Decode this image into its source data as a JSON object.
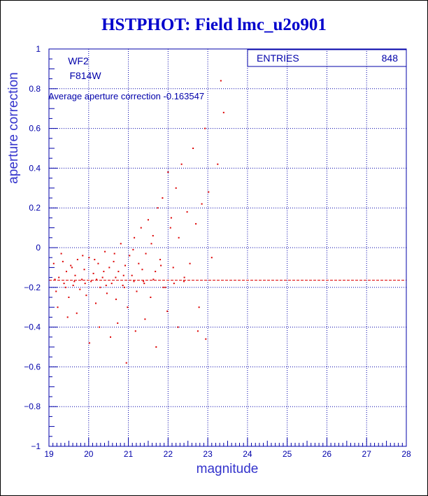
{
  "chart_data": {
    "type": "scatter",
    "title": "HSTPHOT: Field lmc_u2o901",
    "xlabel": "magnitude",
    "ylabel": "aperture correction",
    "xlim": [
      19,
      28
    ],
    "ylim": [
      -1,
      1
    ],
    "x_ticks": [
      "19",
      "20",
      "21",
      "22",
      "23",
      "24",
      "25",
      "26",
      "27",
      "28"
    ],
    "y_ticks": [
      "-1",
      "-0.8",
      "-0.6",
      "-0.4",
      "-0.2",
      "0",
      "0.2",
      "0.4",
      "0.6",
      "0.8",
      "1"
    ],
    "grid": true,
    "annotations": {
      "chip": "WF2",
      "filter": "F814W",
      "average_text": "Average aperture correction -0.163547",
      "average_value": -0.163547
    },
    "stats_box": {
      "label": "ENTRIES",
      "value": "848"
    },
    "marker_color": "#dd0000",
    "axis_color": "#0000aa",
    "points": [
      [
        19.12,
        -0.08
      ],
      [
        19.18,
        -0.22
      ],
      [
        19.25,
        -0.15
      ],
      [
        19.31,
        -0.03
      ],
      [
        19.38,
        -0.18
      ],
      [
        19.44,
        -0.12
      ],
      [
        19.5,
        -0.25
      ],
      [
        19.55,
        -0.09
      ],
      [
        19.61,
        -0.19
      ],
      [
        19.66,
        -0.14
      ],
      [
        19.72,
        -0.06
      ],
      [
        19.78,
        -0.21
      ],
      [
        19.83,
        -0.16
      ],
      [
        19.89,
        -0.11
      ],
      [
        19.94,
        -0.24
      ],
      [
        20.01,
        -0.05
      ],
      [
        20.06,
        -0.17
      ],
      [
        20.12,
        -0.13
      ],
      [
        20.18,
        -0.28
      ],
      [
        20.24,
        -0.08
      ],
      [
        20.29,
        -0.2
      ],
      [
        20.35,
        -0.15
      ],
      [
        20.41,
        -0.02
      ],
      [
        20.46,
        -0.23
      ],
      [
        20.52,
        -0.1
      ],
      [
        20.58,
        -0.18
      ],
      [
        20.63,
        -0.07
      ],
      [
        20.69,
        -0.26
      ],
      [
        20.75,
        -0.12
      ],
      [
        20.81,
        0.02
      ],
      [
        20.86,
        -0.19
      ],
      [
        20.92,
        -0.09
      ],
      [
        20.98,
        -0.3
      ],
      [
        21.03,
        -0.04
      ],
      [
        21.09,
        -0.14
      ],
      [
        21.15,
        0.05
      ],
      [
        21.21,
        -0.22
      ],
      [
        21.26,
        -0.08
      ],
      [
        21.32,
        0.1
      ],
      [
        21.38,
        -0.17
      ],
      [
        21.44,
        -0.03
      ],
      [
        21.5,
        0.14
      ],
      [
        21.56,
        -0.25
      ],
      [
        21.62,
        0.06
      ],
      [
        21.68,
        -0.12
      ],
      [
        21.74,
        0.2
      ],
      [
        21.8,
        -0.06
      ],
      [
        21.86,
        0.25
      ],
      [
        21.93,
        -0.2
      ],
      [
        22.0,
        0.38
      ],
      [
        22.06,
        0.1
      ],
      [
        22.13,
        -0.1
      ],
      [
        22.2,
        0.3
      ],
      [
        22.27,
        0.05
      ],
      [
        22.34,
        0.42
      ],
      [
        22.41,
        -0.15
      ],
      [
        22.48,
        0.18
      ],
      [
        22.55,
        -0.08
      ],
      [
        22.63,
        0.5
      ],
      [
        22.7,
        0.12
      ],
      [
        22.78,
        -0.3
      ],
      [
        22.85,
        0.22
      ],
      [
        22.93,
        0.6
      ],
      [
        23.02,
        0.28
      ],
      [
        23.1,
        -0.05
      ],
      [
        23.25,
        0.42
      ],
      [
        23.33,
        0.84
      ],
      [
        23.4,
        0.68
      ],
      [
        19.22,
        -0.3
      ],
      [
        19.47,
        -0.35
      ],
      [
        19.7,
        -0.33
      ],
      [
        20.02,
        -0.48
      ],
      [
        20.27,
        -0.4
      ],
      [
        20.55,
        -0.45
      ],
      [
        20.73,
        -0.38
      ],
      [
        20.95,
        -0.58
      ],
      [
        21.18,
        -0.42
      ],
      [
        21.42,
        -0.36
      ],
      [
        21.7,
        -0.5
      ],
      [
        21.98,
        -0.32
      ],
      [
        22.25,
        -0.4
      ],
      [
        22.75,
        -0.42
      ],
      [
        22.95,
        -0.46
      ],
      [
        19.35,
        -0.07
      ],
      [
        19.58,
        -0.1
      ],
      [
        19.85,
        -0.04
      ],
      [
        20.15,
        -0.06
      ],
      [
        20.38,
        -0.12
      ],
      [
        20.65,
        -0.03
      ],
      [
        20.88,
        -0.14
      ],
      [
        21.12,
        -0.01
      ],
      [
        21.35,
        -0.11
      ],
      [
        21.58,
        0.02
      ],
      [
        21.82,
        -0.09
      ],
      [
        22.08,
        0.15
      ],
      [
        19.15,
        -0.16
      ],
      [
        19.42,
        -0.2
      ],
      [
        19.64,
        -0.17
      ],
      [
        19.91,
        -0.18
      ],
      [
        20.2,
        -0.16
      ],
      [
        20.44,
        -0.19
      ],
      [
        20.68,
        -0.15
      ],
      [
        20.9,
        -0.2
      ],
      [
        21.14,
        -0.17
      ],
      [
        21.4,
        -0.18
      ],
      [
        21.63,
        -0.16
      ],
      [
        21.88,
        -0.2
      ],
      [
        22.15,
        -0.18
      ],
      [
        22.4,
        -0.17
      ]
    ]
  }
}
